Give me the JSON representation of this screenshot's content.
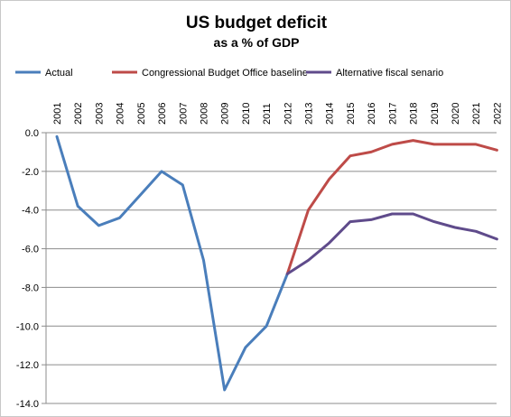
{
  "chart_data": {
    "type": "line",
    "title": "US budget deficit",
    "subtitle": "as a % of GDP",
    "xlabel": "",
    "ylabel": "",
    "categories": [
      "2001",
      "2002",
      "2003",
      "2004",
      "2005",
      "2006",
      "2007",
      "2008",
      "2009",
      "2010",
      "2011",
      "2012",
      "2013",
      "2014",
      "2015",
      "2016",
      "2017",
      "2018",
      "2019",
      "2020",
      "2021",
      "2022"
    ],
    "ylim": [
      -14,
      0
    ],
    "yticks": [
      0,
      -2,
      -4,
      -6,
      -8,
      -10,
      -12,
      -14
    ],
    "ytick_labels": [
      "0.0",
      "-2.0",
      "-4.0",
      "-6.0",
      "-8.0",
      "-10.0",
      "-12.0",
      "-14.0"
    ],
    "grid": true,
    "legend_position": "top",
    "series": [
      {
        "name": "Actual",
        "color": "#4a7ebb",
        "values": [
          -0.2,
          -3.8,
          -4.8,
          -4.4,
          -3.2,
          -2.0,
          -2.7,
          -6.6,
          -13.3,
          -11.1,
          -10.0,
          -7.3,
          null,
          null,
          null,
          null,
          null,
          null,
          null,
          null,
          null,
          null
        ]
      },
      {
        "name": "Congressional Budget Office baseline",
        "color": "#be4b48",
        "values": [
          null,
          null,
          null,
          null,
          null,
          null,
          null,
          null,
          null,
          null,
          null,
          -7.3,
          -4.0,
          -2.4,
          -1.2,
          -1.0,
          -0.6,
          -0.4,
          -0.6,
          -0.6,
          -0.6,
          -0.9
        ]
      },
      {
        "name": "Alternative fiscal senario",
        "color": "#5f4b8b",
        "values": [
          null,
          null,
          null,
          null,
          null,
          null,
          null,
          null,
          null,
          null,
          null,
          -7.3,
          -6.6,
          -5.7,
          -4.6,
          -4.5,
          -4.2,
          -4.2,
          -4.6,
          -4.9,
          -5.1,
          -5.5
        ]
      }
    ]
  }
}
